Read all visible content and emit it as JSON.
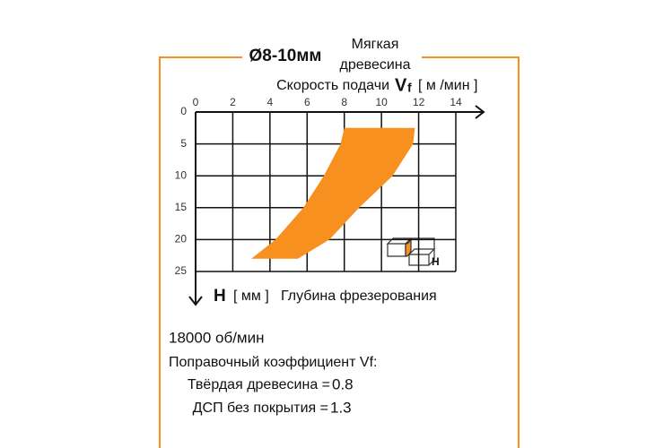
{
  "chart_data": {
    "type": "range",
    "title": "Ø8-10мм",
    "subtitle": [
      "Мягкая",
      "древесина"
    ],
    "x_label": "Скорость подачи",
    "x_symbol": "V",
    "x_symbol_sub": "f",
    "x_unit": "[ м /мин ]",
    "y_symbol": "H",
    "y_unit": "[ мм ]",
    "y_label": "Глубина фрезерования",
    "icon_label": "H",
    "color": "#f7901e",
    "y": [
      2.5,
      5,
      10,
      15,
      20,
      23
    ],
    "x_low": [
      8,
      7.8,
      6.9,
      5.8,
      4.3,
      3
    ],
    "x_high": [
      11.8,
      11.7,
      10.6,
      8.8,
      7.2,
      5.5
    ],
    "xlim": [
      0,
      14
    ],
    "xticks": [
      0,
      2,
      4,
      6,
      8,
      10,
      12,
      14
    ],
    "ylim": [
      0,
      25
    ],
    "yticks": [
      0,
      5,
      10,
      15,
      20,
      25
    ],
    "y_inverted": true,
    "grid": true
  },
  "notes": {
    "speed": "18000 об/мин",
    "coef_title": "Поправочный коэффициент Vf:",
    "items": [
      {
        "label": "Твёрдая древесина =",
        "value": 0.8
      },
      {
        "label": "ДСП без покрытия =",
        "value": 1.3
      }
    ]
  }
}
